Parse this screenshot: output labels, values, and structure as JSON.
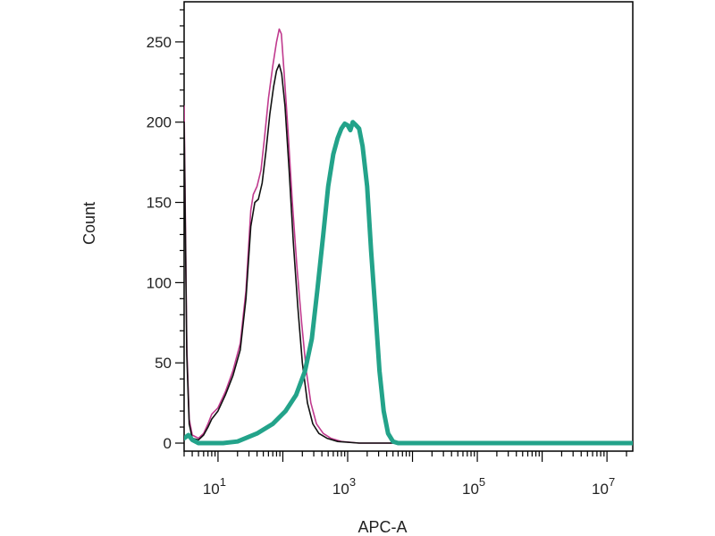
{
  "chart_data": {
    "type": "line",
    "title": "",
    "xlabel": "APC-A",
    "ylabel": "Count",
    "x_scale": "log",
    "xlim": [
      3,
      25000000
    ],
    "ylim": [
      -5,
      275
    ],
    "grid": false,
    "legend": "none",
    "y_ticks": [
      0,
      50,
      100,
      150,
      200,
      250
    ],
    "x_ticks": [
      {
        "value": 10,
        "base": "10",
        "exp": "1"
      },
      {
        "value": 1000,
        "base": "10",
        "exp": "3"
      },
      {
        "value": 100000,
        "base": "10",
        "exp": "5"
      },
      {
        "value": 10000000,
        "base": "10",
        "exp": "7"
      }
    ],
    "series": [
      {
        "color": "#c03a8e",
        "stroke": 1.6,
        "points": [
          [
            3,
            210
          ],
          [
            3.3,
            60
          ],
          [
            3.6,
            15
          ],
          [
            4,
            5
          ],
          [
            5,
            3
          ],
          [
            6,
            6
          ],
          [
            7,
            12
          ],
          [
            8,
            18
          ],
          [
            10,
            22
          ],
          [
            13,
            32
          ],
          [
            17,
            45
          ],
          [
            22,
            62
          ],
          [
            27,
            95
          ],
          [
            32,
            145
          ],
          [
            35,
            155
          ],
          [
            40,
            160
          ],
          [
            46,
            170
          ],
          [
            52,
            190
          ],
          [
            60,
            215
          ],
          [
            70,
            235
          ],
          [
            80,
            250
          ],
          [
            88,
            258
          ],
          [
            95,
            255
          ],
          [
            105,
            230
          ],
          [
            120,
            195
          ],
          [
            140,
            150
          ],
          [
            165,
            110
          ],
          [
            195,
            75
          ],
          [
            230,
            45
          ],
          [
            270,
            25
          ],
          [
            330,
            12
          ],
          [
            420,
            6
          ],
          [
            550,
            3
          ],
          [
            800,
            1
          ],
          [
            1500,
            0
          ],
          [
            25000000,
            0
          ]
        ]
      },
      {
        "color": "#111111",
        "stroke": 1.6,
        "points": [
          [
            3,
            200
          ],
          [
            3.3,
            55
          ],
          [
            3.6,
            12
          ],
          [
            4,
            3
          ],
          [
            5,
            2
          ],
          [
            6,
            5
          ],
          [
            7,
            10
          ],
          [
            8,
            15
          ],
          [
            10,
            20
          ],
          [
            13,
            30
          ],
          [
            17,
            42
          ],
          [
            22,
            58
          ],
          [
            27,
            90
          ],
          [
            32,
            135
          ],
          [
            37,
            150
          ],
          [
            42,
            152
          ],
          [
            48,
            162
          ],
          [
            55,
            182
          ],
          [
            63,
            205
          ],
          [
            72,
            222
          ],
          [
            80,
            232
          ],
          [
            88,
            236
          ],
          [
            96,
            230
          ],
          [
            108,
            210
          ],
          [
            125,
            170
          ],
          [
            145,
            125
          ],
          [
            170,
            85
          ],
          [
            200,
            50
          ],
          [
            240,
            25
          ],
          [
            290,
            12
          ],
          [
            360,
            6
          ],
          [
            480,
            3
          ],
          [
            700,
            1
          ],
          [
            1500,
            0
          ],
          [
            25000000,
            0
          ]
        ]
      },
      {
        "color": "#23a38a",
        "stroke": 5,
        "points": [
          [
            3,
            3
          ],
          [
            3.5,
            5
          ],
          [
            4,
            2
          ],
          [
            5,
            0
          ],
          [
            8,
            0
          ],
          [
            12,
            0
          ],
          [
            20,
            1
          ],
          [
            40,
            6
          ],
          [
            70,
            12
          ],
          [
            110,
            20
          ],
          [
            160,
            30
          ],
          [
            220,
            45
          ],
          [
            280,
            65
          ],
          [
            340,
            95
          ],
          [
            420,
            130
          ],
          [
            500,
            160
          ],
          [
            600,
            180
          ],
          [
            700,
            190
          ],
          [
            800,
            196
          ],
          [
            900,
            199
          ],
          [
            1000,
            198
          ],
          [
            1100,
            195
          ],
          [
            1200,
            200
          ],
          [
            1350,
            198
          ],
          [
            1500,
            196
          ],
          [
            1700,
            185
          ],
          [
            2000,
            160
          ],
          [
            2300,
            120
          ],
          [
            2700,
            80
          ],
          [
            3100,
            45
          ],
          [
            3600,
            20
          ],
          [
            4200,
            6
          ],
          [
            5000,
            1
          ],
          [
            6000,
            0
          ],
          [
            25000000,
            0
          ]
        ]
      }
    ]
  }
}
